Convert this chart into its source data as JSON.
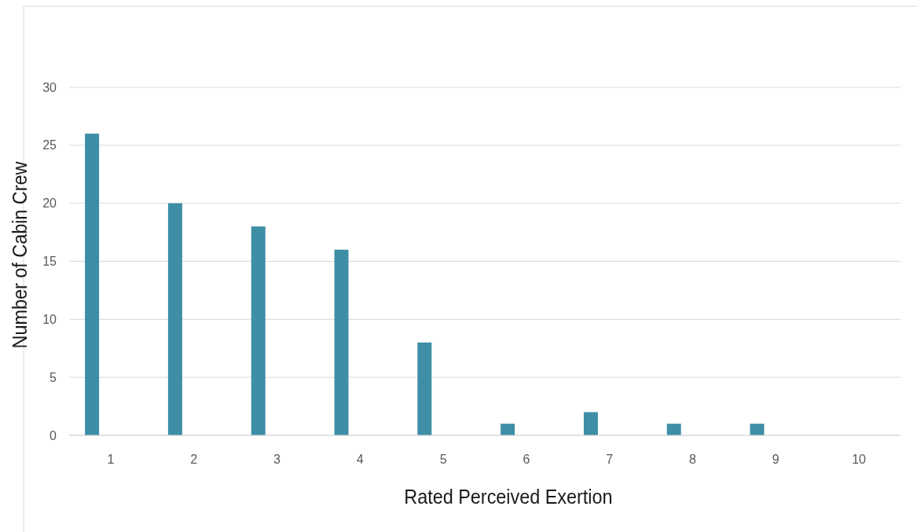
{
  "chart_data": {
    "type": "bar",
    "xlabel": "Rated Perceived Exertion",
    "ylabel": "Number of Cabin Crew",
    "categories": [
      "1",
      "2",
      "3",
      "4",
      "5",
      "6",
      "7",
      "8",
      "9",
      "10"
    ],
    "values": [
      26,
      20,
      18,
      16,
      8,
      1,
      2,
      1,
      1,
      0
    ],
    "color": "#3e8ea5",
    "ylim": [
      0,
      30
    ],
    "yticks": [
      0,
      5,
      10,
      15,
      20,
      25,
      30
    ],
    "grid": "y"
  }
}
